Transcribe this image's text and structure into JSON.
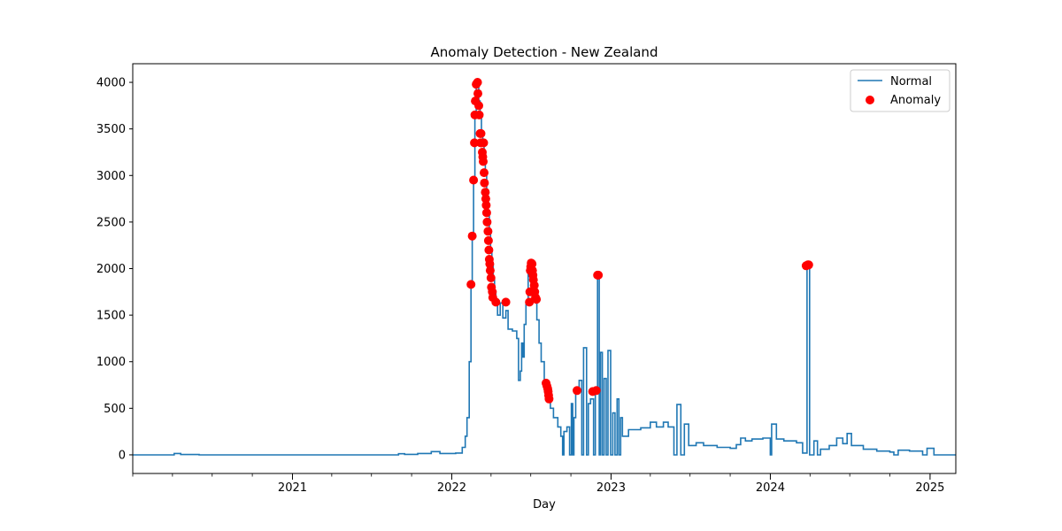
{
  "chart_data": {
    "type": "line",
    "title": "Anomaly Detection - New Zealand",
    "xlabel": "Day",
    "ylabel": "",
    "xlim": [
      "2020-01-01",
      "2025-03-01"
    ],
    "ylim": [
      -200,
      4200
    ],
    "y_ticks": [
      0,
      500,
      1000,
      1500,
      2000,
      2500,
      3000,
      3500,
      4000
    ],
    "x_ticks": [
      {
        "date": "2021-01-01",
        "label": "2021"
      },
      {
        "date": "2022-01-01",
        "label": "2022"
      },
      {
        "date": "2023-01-01",
        "label": "2023"
      },
      {
        "date": "2024-01-01",
        "label": "2024"
      },
      {
        "date": "2025-01-01",
        "label": "2025"
      }
    ],
    "legend": {
      "position": "top-right",
      "entries": [
        "Normal",
        "Anomaly"
      ]
    },
    "colors": {
      "normal": "#1f77b4",
      "anomaly": "#ff0000"
    },
    "series": [
      {
        "name": "Normal",
        "kind": "step-line",
        "points": [
          [
            "2020-01-01",
            0
          ],
          [
            "2020-03-20",
            0
          ],
          [
            "2020-04-05",
            15
          ],
          [
            "2020-04-20",
            3
          ],
          [
            "2020-06-01",
            0
          ],
          [
            "2021-08-20",
            0
          ],
          [
            "2021-09-01",
            12
          ],
          [
            "2021-09-15",
            5
          ],
          [
            "2021-10-15",
            15
          ],
          [
            "2021-11-15",
            35
          ],
          [
            "2021-12-05",
            15
          ],
          [
            "2022-01-10",
            20
          ],
          [
            "2022-01-25",
            80
          ],
          [
            "2022-02-01",
            200
          ],
          [
            "2022-02-05",
            400
          ],
          [
            "2022-02-10",
            1000
          ],
          [
            "2022-02-14",
            1830
          ],
          [
            "2022-02-17",
            2350
          ],
          [
            "2022-02-20",
            2950
          ],
          [
            "2022-02-23",
            3650
          ],
          [
            "2022-02-26",
            3950
          ],
          [
            "2022-03-01",
            4000
          ],
          [
            "2022-03-04",
            3800
          ],
          [
            "2022-03-07",
            3650
          ],
          [
            "2022-03-10",
            3450
          ],
          [
            "2022-03-13",
            3350
          ],
          [
            "2022-03-16",
            3250
          ],
          [
            "2022-03-19",
            3030
          ],
          [
            "2022-03-22",
            2800
          ],
          [
            "2022-03-25",
            2600
          ],
          [
            "2022-03-28",
            2400
          ],
          [
            "2022-03-31",
            2200
          ],
          [
            "2022-04-03",
            2050
          ],
          [
            "2022-04-06",
            1880
          ],
          [
            "2022-04-09",
            1750
          ],
          [
            "2022-04-12",
            1650
          ],
          [
            "2022-04-16",
            1500
          ],
          [
            "2022-04-22",
            1630
          ],
          [
            "2022-04-28",
            1470
          ],
          [
            "2022-05-05",
            1550
          ],
          [
            "2022-05-10",
            1350
          ],
          [
            "2022-05-20",
            1330
          ],
          [
            "2022-05-30",
            1250
          ],
          [
            "2022-06-03",
            800
          ],
          [
            "2022-06-07",
            900
          ],
          [
            "2022-06-10",
            1200
          ],
          [
            "2022-06-13",
            1050
          ],
          [
            "2022-06-16",
            1400
          ],
          [
            "2022-06-20",
            1650
          ],
          [
            "2022-06-25",
            2000
          ],
          [
            "2022-07-01",
            2050
          ],
          [
            "2022-07-05",
            1800
          ],
          [
            "2022-07-10",
            1700
          ],
          [
            "2022-07-15",
            1450
          ],
          [
            "2022-07-20",
            1200
          ],
          [
            "2022-07-25",
            1000
          ],
          [
            "2022-08-01",
            750
          ],
          [
            "2022-08-08",
            650
          ],
          [
            "2022-08-15",
            500
          ],
          [
            "2022-08-22",
            400
          ],
          [
            "2022-09-01",
            300
          ],
          [
            "2022-09-08",
            200
          ],
          [
            "2022-09-12",
            0
          ],
          [
            "2022-09-15",
            250
          ],
          [
            "2022-09-22",
            300
          ],
          [
            "2022-09-28",
            0
          ],
          [
            "2022-10-02",
            550
          ],
          [
            "2022-10-05",
            0
          ],
          [
            "2022-10-08",
            400
          ],
          [
            "2022-10-12",
            700
          ],
          [
            "2022-10-20",
            800
          ],
          [
            "2022-10-26",
            0
          ],
          [
            "2022-10-30",
            1150
          ],
          [
            "2022-11-06",
            0
          ],
          [
            "2022-11-10",
            550
          ],
          [
            "2022-11-15",
            600
          ],
          [
            "2022-11-22",
            0
          ],
          [
            "2022-11-26",
            700
          ],
          [
            "2022-12-01",
            1900
          ],
          [
            "2022-12-05",
            0
          ],
          [
            "2022-12-08",
            1100
          ],
          [
            "2022-12-12",
            0
          ],
          [
            "2022-12-16",
            820
          ],
          [
            "2022-12-21",
            0
          ],
          [
            "2022-12-25",
            1120
          ],
          [
            "2022-12-31",
            0
          ],
          [
            "2023-01-05",
            450
          ],
          [
            "2023-01-10",
            0
          ],
          [
            "2023-01-15",
            600
          ],
          [
            "2023-01-19",
            0
          ],
          [
            "2023-01-23",
            400
          ],
          [
            "2023-01-27",
            200
          ],
          [
            "2023-02-10",
            270
          ],
          [
            "2023-03-10",
            290
          ],
          [
            "2023-04-01",
            350
          ],
          [
            "2023-04-15",
            300
          ],
          [
            "2023-05-01",
            350
          ],
          [
            "2023-05-12",
            300
          ],
          [
            "2023-05-25",
            0
          ],
          [
            "2023-06-01",
            540
          ],
          [
            "2023-06-10",
            0
          ],
          [
            "2023-06-18",
            330
          ],
          [
            "2023-06-28",
            100
          ],
          [
            "2023-07-15",
            130
          ],
          [
            "2023-08-01",
            100
          ],
          [
            "2023-09-01",
            80
          ],
          [
            "2023-10-01",
            70
          ],
          [
            "2023-10-15",
            110
          ],
          [
            "2023-10-25",
            180
          ],
          [
            "2023-11-05",
            150
          ],
          [
            "2023-11-20",
            170
          ],
          [
            "2023-12-15",
            180
          ],
          [
            "2024-01-01",
            0
          ],
          [
            "2024-01-04",
            330
          ],
          [
            "2024-01-15",
            170
          ],
          [
            "2024-02-01",
            150
          ],
          [
            "2024-03-01",
            130
          ],
          [
            "2024-03-15",
            20
          ],
          [
            "2024-03-25",
            2030
          ],
          [
            "2024-03-31",
            0
          ],
          [
            "2024-04-10",
            150
          ],
          [
            "2024-04-18",
            0
          ],
          [
            "2024-04-25",
            60
          ],
          [
            "2024-05-15",
            100
          ],
          [
            "2024-06-01",
            180
          ],
          [
            "2024-06-15",
            120
          ],
          [
            "2024-06-25",
            230
          ],
          [
            "2024-07-05",
            100
          ],
          [
            "2024-08-01",
            60
          ],
          [
            "2024-09-01",
            40
          ],
          [
            "2024-10-01",
            30
          ],
          [
            "2024-10-10",
            0
          ],
          [
            "2024-10-20",
            50
          ],
          [
            "2024-11-15",
            40
          ],
          [
            "2024-12-15",
            0
          ],
          [
            "2024-12-25",
            70
          ],
          [
            "2025-01-10",
            0
          ],
          [
            "2025-03-01",
            0
          ]
        ]
      },
      {
        "name": "Anomaly",
        "kind": "scatter",
        "points": [
          [
            "2022-02-14",
            1830
          ],
          [
            "2022-02-17",
            2350
          ],
          [
            "2022-02-20",
            2950
          ],
          [
            "2022-02-22",
            3350
          ],
          [
            "2022-02-23",
            3650
          ],
          [
            "2022-02-24",
            3800
          ],
          [
            "2022-02-26",
            3980
          ],
          [
            "2022-03-01",
            4000
          ],
          [
            "2022-03-02",
            3880
          ],
          [
            "2022-03-04",
            3750
          ],
          [
            "2022-03-05",
            3650
          ],
          [
            "2022-03-07",
            3450
          ],
          [
            "2022-03-08",
            3350
          ],
          [
            "2022-03-09",
            3450
          ],
          [
            "2022-03-10",
            3350
          ],
          [
            "2022-03-12",
            3250
          ],
          [
            "2022-03-13",
            3200
          ],
          [
            "2022-03-14",
            3150
          ],
          [
            "2022-03-15",
            3350
          ],
          [
            "2022-03-16",
            3030
          ],
          [
            "2022-03-17",
            2920
          ],
          [
            "2022-03-19",
            2820
          ],
          [
            "2022-03-20",
            2750
          ],
          [
            "2022-03-21",
            2680
          ],
          [
            "2022-03-22",
            2600
          ],
          [
            "2022-03-23",
            2500
          ],
          [
            "2022-03-25",
            2400
          ],
          [
            "2022-03-26",
            2300
          ],
          [
            "2022-03-27",
            2200
          ],
          [
            "2022-03-28",
            2100
          ],
          [
            "2022-03-29",
            2050
          ],
          [
            "2022-03-30",
            1980
          ],
          [
            "2022-04-01",
            1900
          ],
          [
            "2022-04-02",
            1800
          ],
          [
            "2022-04-04",
            1750
          ],
          [
            "2022-04-05",
            1690
          ],
          [
            "2022-04-12",
            1640
          ],
          [
            "2022-05-05",
            1640
          ],
          [
            "2022-06-28",
            1640
          ],
          [
            "2022-06-29",
            1750
          ],
          [
            "2022-06-30",
            1980
          ],
          [
            "2022-07-01",
            2020
          ],
          [
            "2022-07-02",
            2060
          ],
          [
            "2022-07-04",
            2050
          ],
          [
            "2022-07-05",
            1980
          ],
          [
            "2022-07-06",
            1930
          ],
          [
            "2022-07-07",
            1880
          ],
          [
            "2022-07-09",
            1820
          ],
          [
            "2022-07-10",
            1750
          ],
          [
            "2022-07-12",
            1690
          ],
          [
            "2022-07-14",
            1670
          ],
          [
            "2022-08-05",
            770
          ],
          [
            "2022-08-07",
            740
          ],
          [
            "2022-08-09",
            710
          ],
          [
            "2022-08-10",
            680
          ],
          [
            "2022-08-11",
            640
          ],
          [
            "2022-08-12",
            600
          ],
          [
            "2022-10-15",
            690
          ],
          [
            "2022-11-20",
            680
          ],
          [
            "2022-11-28",
            690
          ],
          [
            "2022-12-01",
            1930
          ],
          [
            "2022-12-03",
            1930
          ],
          [
            "2024-03-23",
            2030
          ],
          [
            "2024-03-27",
            2040
          ],
          [
            "2024-03-29",
            2040
          ]
        ]
      }
    ]
  }
}
